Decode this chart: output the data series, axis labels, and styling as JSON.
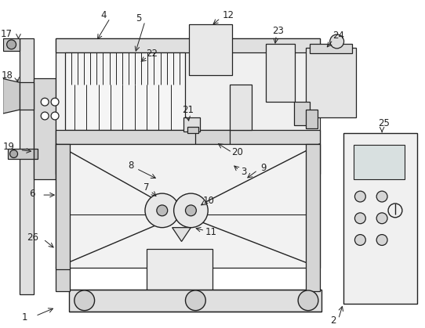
{
  "bg_color": "#ffffff",
  "lc": "#222222",
  "figsize": [
    5.42,
    4.19
  ],
  "dpi": 100
}
